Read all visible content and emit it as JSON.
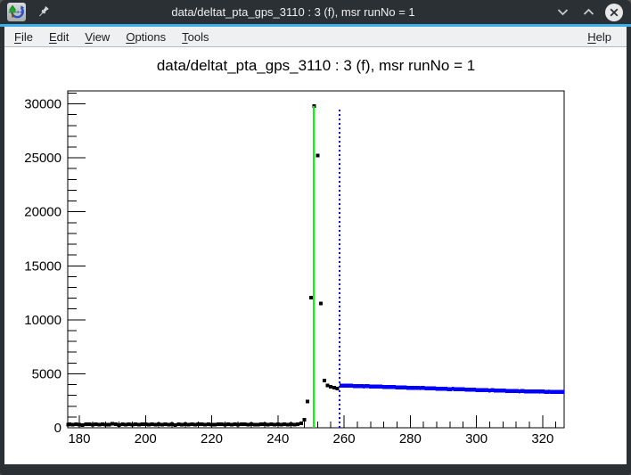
{
  "titlebar": {
    "title": "data/deltat_pta_gps_3110 : 3 (f), msr runNo = 1",
    "app_icon": "root-logo-icon",
    "pin_icon": "pin-icon",
    "buttons": [
      "minimize",
      "maximize",
      "close"
    ]
  },
  "menubar": {
    "items": [
      "File",
      "Edit",
      "View",
      "Options",
      "Tools"
    ],
    "help": "Help"
  },
  "colors": {
    "accent": "#3daee9",
    "titlebar_bg": "#2b3034",
    "menubar_bg": "#eff0f1",
    "canvas_bg": "#ffffff",
    "frame": "#000000",
    "data_marker": "#000000",
    "theory_line": "#0000ff",
    "t0_line": "#00ff00",
    "range_line": "#0000ff"
  },
  "chart_data": {
    "type": "scatter",
    "title": "data/deltat_pta_gps_3110 : 3 (f), msr runNo = 1",
    "xlabel": "",
    "ylabel": "",
    "xlim": [
      176.5,
      326.5
    ],
    "ylim": [
      0,
      31200
    ],
    "x_ticks": [
      180,
      200,
      220,
      240,
      260,
      280,
      300,
      320
    ],
    "x_minor_step": 4,
    "y_ticks": [
      0,
      5000,
      10000,
      15000,
      20000,
      25000,
      30000
    ],
    "y_minor_step": 1000,
    "grid": false,
    "legend": null,
    "series": [
      {
        "name": "histogram data",
        "type": "scatter",
        "marker": "square",
        "marker_size": 4,
        "color": "#000000",
        "points": [
          [
            176.7,
            300
          ],
          [
            177,
            310
          ],
          [
            178,
            280
          ],
          [
            179,
            330
          ],
          [
            180,
            300
          ],
          [
            181,
            260
          ],
          [
            182,
            340
          ],
          [
            183,
            310
          ],
          [
            184,
            290
          ],
          [
            185,
            350
          ],
          [
            186,
            270
          ],
          [
            187,
            320
          ],
          [
            188,
            300
          ],
          [
            189,
            280
          ],
          [
            190,
            360
          ],
          [
            191,
            310
          ],
          [
            192,
            250
          ],
          [
            193,
            330
          ],
          [
            194,
            300
          ],
          [
            195,
            340
          ],
          [
            196,
            280
          ],
          [
            197,
            310
          ],
          [
            198,
            290
          ],
          [
            199,
            350
          ],
          [
            200,
            320
          ],
          [
            201,
            270
          ],
          [
            202,
            330
          ],
          [
            203,
            300
          ],
          [
            204,
            310
          ],
          [
            205,
            280
          ],
          [
            206,
            340
          ],
          [
            207,
            300
          ],
          [
            208,
            320
          ],
          [
            209,
            260
          ],
          [
            210,
            310
          ],
          [
            211,
            290
          ],
          [
            212,
            350
          ],
          [
            213,
            300
          ],
          [
            214,
            330
          ],
          [
            215,
            280
          ],
          [
            216,
            310
          ],
          [
            217,
            340
          ],
          [
            218,
            290
          ],
          [
            219,
            320
          ],
          [
            220,
            300
          ],
          [
            221,
            270
          ],
          [
            222,
            330
          ],
          [
            223,
            310
          ],
          [
            224,
            290
          ],
          [
            225,
            340
          ],
          [
            226,
            300
          ],
          [
            227,
            320
          ],
          [
            228,
            280
          ],
          [
            229,
            310
          ],
          [
            230,
            350
          ],
          [
            231,
            290
          ],
          [
            232,
            320
          ],
          [
            233,
            300
          ],
          [
            234,
            270
          ],
          [
            235,
            330
          ],
          [
            236,
            310
          ],
          [
            237,
            290
          ],
          [
            238,
            340
          ],
          [
            239,
            300
          ],
          [
            240,
            320
          ],
          [
            241,
            280
          ],
          [
            242,
            310
          ],
          [
            243,
            290
          ],
          [
            244,
            330
          ],
          [
            245,
            300
          ],
          [
            246,
            350
          ],
          [
            247,
            420
          ],
          [
            248,
            740
          ],
          [
            249,
            2450
          ],
          [
            250,
            12040
          ],
          [
            251,
            29800
          ],
          [
            252,
            25230
          ],
          [
            253,
            11500
          ],
          [
            254,
            4370
          ],
          [
            255,
            3930
          ],
          [
            256,
            3800
          ],
          [
            257,
            3700
          ],
          [
            258,
            3620
          ]
        ]
      },
      {
        "name": "theory",
        "type": "line",
        "line_width": 4.5,
        "color": "#0000ff",
        "points": [
          [
            258.6,
            3930
          ],
          [
            259,
            3915
          ],
          [
            260,
            3905
          ],
          [
            261,
            3890
          ],
          [
            262,
            3900
          ],
          [
            263,
            3870
          ],
          [
            264,
            3858
          ],
          [
            265,
            3852
          ],
          [
            266,
            3835
          ],
          [
            267,
            3858
          ],
          [
            268,
            3825
          ],
          [
            269,
            3810
          ],
          [
            270,
            3800
          ],
          [
            271,
            3815
          ],
          [
            272,
            3780
          ],
          [
            273,
            3770
          ],
          [
            274,
            3762
          ],
          [
            275,
            3775
          ],
          [
            276,
            3740
          ],
          [
            277,
            3730
          ],
          [
            278,
            3745
          ],
          [
            279,
            3710
          ],
          [
            280,
            3700
          ],
          [
            281,
            3715
          ],
          [
            282,
            3680
          ],
          [
            283,
            3672
          ],
          [
            284,
            3685
          ],
          [
            285,
            3650
          ],
          [
            286,
            3642
          ],
          [
            287,
            3655
          ],
          [
            288,
            3620
          ],
          [
            289,
            3612
          ],
          [
            290,
            3625
          ],
          [
            291,
            3592
          ],
          [
            292,
            3582
          ],
          [
            293,
            3595
          ],
          [
            294,
            3562
          ],
          [
            295,
            3550
          ],
          [
            296,
            3565
          ],
          [
            297,
            3532
          ],
          [
            298,
            3522
          ],
          [
            299,
            3535
          ],
          [
            300,
            3500
          ],
          [
            301,
            3492
          ],
          [
            302,
            3505
          ],
          [
            303,
            3472
          ],
          [
            304,
            3462
          ],
          [
            305,
            3475
          ],
          [
            306,
            3442
          ],
          [
            307,
            3432
          ],
          [
            308,
            3445
          ],
          [
            309,
            3420
          ],
          [
            310,
            3412
          ],
          [
            311,
            3425
          ],
          [
            312,
            3392
          ],
          [
            313,
            3382
          ],
          [
            314,
            3395
          ],
          [
            315,
            3370
          ],
          [
            316,
            3362
          ],
          [
            317,
            3375
          ],
          [
            318,
            3350
          ],
          [
            319,
            3342
          ],
          [
            320,
            3355
          ],
          [
            321,
            3330
          ],
          [
            322,
            3345
          ],
          [
            323,
            3322
          ],
          [
            324,
            3335
          ],
          [
            325,
            3312
          ],
          [
            326,
            3325
          ],
          [
            326.5,
            3318
          ]
        ]
      }
    ],
    "annotations": [
      {
        "name": "t0 line",
        "type": "vline",
        "x": 250.8,
        "y0": 0,
        "y1": 29800,
        "color": "#00ff00",
        "style": "solid",
        "width": 2
      },
      {
        "name": "fit range start line",
        "type": "vline",
        "x": 258.6,
        "y0": 0,
        "y1": 29500,
        "color": "#0000ff",
        "style": "dotted",
        "width": 2
      }
    ]
  }
}
